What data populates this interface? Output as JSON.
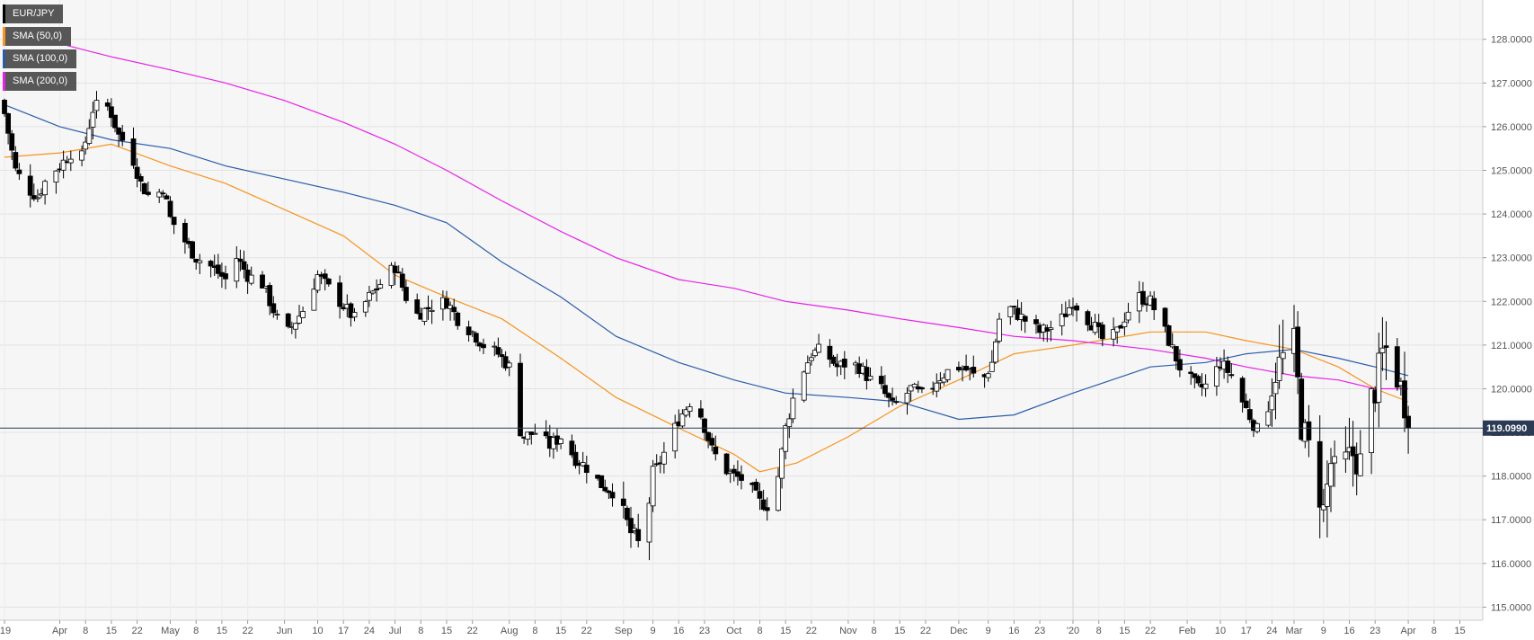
{
  "chart_data": {
    "type": "candlestick",
    "symbol": "EUR/JPY",
    "legend": [
      {
        "label": "EUR/JPY",
        "color": "#000000"
      },
      {
        "label": "SMA (50,0)",
        "color": "#f7931e"
      },
      {
        "label": "SMA (100,0)",
        "color": "#2a5caa"
      },
      {
        "label": "SMA (200,0)",
        "color": "#e620e6"
      }
    ],
    "ylim": [
      114.7,
      128.9
    ],
    "y_ticks": [
      {
        "value": 128.0,
        "label": "128.0000"
      },
      {
        "value": 127.0,
        "label": "127.0000"
      },
      {
        "value": 126.0,
        "label": "126.0000"
      },
      {
        "value": 125.0,
        "label": "125.0000"
      },
      {
        "value": 124.0,
        "label": "124.0000"
      },
      {
        "value": 123.0,
        "label": "123.0000"
      },
      {
        "value": 122.0,
        "label": "122.0000"
      },
      {
        "value": 121.0,
        "label": "121.0000"
      },
      {
        "value": 120.0,
        "label": "120.0000"
      },
      {
        "value": 119.0,
        "label": "119.0000"
      },
      {
        "value": 118.0,
        "label": "118.0000"
      },
      {
        "value": 117.0,
        "label": "117.0000"
      },
      {
        "value": 116.0,
        "label": "116.0000"
      },
      {
        "value": 115.0,
        "label": "115.0000"
      }
    ],
    "x_ticks": [
      {
        "label": "'19",
        "day": 0
      },
      {
        "label": "Apr",
        "day": 15
      },
      {
        "label": "8",
        "day": 22
      },
      {
        "label": "15",
        "day": 29
      },
      {
        "label": "22",
        "day": 36
      },
      {
        "label": "May",
        "day": 45
      },
      {
        "label": "8",
        "day": 52
      },
      {
        "label": "15",
        "day": 59
      },
      {
        "label": "22",
        "day": 66
      },
      {
        "label": "Jun",
        "day": 76
      },
      {
        "label": "10",
        "day": 85
      },
      {
        "label": "17",
        "day": 92
      },
      {
        "label": "24",
        "day": 99
      },
      {
        "label": "Jul",
        "day": 106
      },
      {
        "label": "8",
        "day": 113
      },
      {
        "label": "15",
        "day": 120
      },
      {
        "label": "22",
        "day": 127
      },
      {
        "label": "Aug",
        "day": 137
      },
      {
        "label": "8",
        "day": 144
      },
      {
        "label": "15",
        "day": 151
      },
      {
        "label": "22",
        "day": 158
      },
      {
        "label": "Sep",
        "day": 168
      },
      {
        "label": "9",
        "day": 176
      },
      {
        "label": "16",
        "day": 183
      },
      {
        "label": "23",
        "day": 190
      },
      {
        "label": "Oct",
        "day": 198
      },
      {
        "label": "8",
        "day": 205
      },
      {
        "label": "15",
        "day": 212
      },
      {
        "label": "22",
        "day": 219
      },
      {
        "label": "Nov",
        "day": 229
      },
      {
        "label": "8",
        "day": 236
      },
      {
        "label": "15",
        "day": 243
      },
      {
        "label": "22",
        "day": 250
      },
      {
        "label": "Dec",
        "day": 259
      },
      {
        "label": "9",
        "day": 267
      },
      {
        "label": "16",
        "day": 274
      },
      {
        "label": "23",
        "day": 281
      },
      {
        "label": "'20",
        "day": 290
      },
      {
        "label": "8",
        "day": 297
      },
      {
        "label": "15",
        "day": 304
      },
      {
        "label": "22",
        "day": 311
      },
      {
        "label": "Feb",
        "day": 321
      },
      {
        "label": "10",
        "day": 330
      },
      {
        "label": "17",
        "day": 337
      },
      {
        "label": "24",
        "day": 344
      },
      {
        "label": "Mar",
        "day": 350
      },
      {
        "label": "9",
        "day": 358
      },
      {
        "label": "16",
        "day": 365
      },
      {
        "label": "23",
        "day": 372
      },
      {
        "label": "Apr",
        "day": 381
      },
      {
        "label": "8",
        "day": 388
      },
      {
        "label": "15",
        "day": 395
      }
    ],
    "x_range_days": [
      0,
      400
    ],
    "separator_day": 290,
    "last_price": 119.099,
    "last_price_label": "119.0990",
    "sma50": [
      [
        0,
        125.3
      ],
      [
        15,
        125.4
      ],
      [
        29,
        125.6
      ],
      [
        45,
        125.1
      ],
      [
        60,
        124.7
      ],
      [
        76,
        124.1
      ],
      [
        92,
        123.5
      ],
      [
        106,
        122.6
      ],
      [
        120,
        122.1
      ],
      [
        135,
        121.6
      ],
      [
        151,
        120.7
      ],
      [
        166,
        119.8
      ],
      [
        183,
        119.1
      ],
      [
        198,
        118.5
      ],
      [
        205,
        118.1
      ],
      [
        215,
        118.3
      ],
      [
        229,
        118.9
      ],
      [
        243,
        119.6
      ],
      [
        259,
        120.2
      ],
      [
        274,
        120.8
      ],
      [
        290,
        121.0
      ],
      [
        311,
        121.3
      ],
      [
        326,
        121.3
      ],
      [
        337,
        121.1
      ],
      [
        350,
        120.9
      ],
      [
        362,
        120.5
      ],
      [
        372,
        120.0
      ],
      [
        381,
        119.7
      ]
    ],
    "sma100": [
      [
        0,
        126.5
      ],
      [
        15,
        126.0
      ],
      [
        29,
        125.7
      ],
      [
        45,
        125.5
      ],
      [
        60,
        125.1
      ],
      [
        76,
        124.8
      ],
      [
        92,
        124.5
      ],
      [
        106,
        124.2
      ],
      [
        120,
        123.8
      ],
      [
        135,
        122.9
      ],
      [
        151,
        122.1
      ],
      [
        166,
        121.2
      ],
      [
        183,
        120.6
      ],
      [
        198,
        120.2
      ],
      [
        212,
        119.9
      ],
      [
        229,
        119.8
      ],
      [
        243,
        119.7
      ],
      [
        259,
        119.3
      ],
      [
        274,
        119.4
      ],
      [
        290,
        119.9
      ],
      [
        311,
        120.5
      ],
      [
        326,
        120.6
      ],
      [
        337,
        120.8
      ],
      [
        350,
        120.9
      ],
      [
        362,
        120.7
      ],
      [
        372,
        120.5
      ],
      [
        381,
        120.3
      ]
    ],
    "sma200": [
      [
        0,
        128.0
      ],
      [
        15,
        127.9
      ],
      [
        29,
        127.6
      ],
      [
        45,
        127.3
      ],
      [
        60,
        127.0
      ],
      [
        76,
        126.6
      ],
      [
        92,
        126.1
      ],
      [
        106,
        125.6
      ],
      [
        120,
        125.0
      ],
      [
        135,
        124.3
      ],
      [
        151,
        123.6
      ],
      [
        166,
        123.0
      ],
      [
        183,
        122.5
      ],
      [
        198,
        122.3
      ],
      [
        212,
        122.0
      ],
      [
        229,
        121.8
      ],
      [
        243,
        121.6
      ],
      [
        259,
        121.4
      ],
      [
        274,
        121.2
      ],
      [
        290,
        121.1
      ],
      [
        311,
        120.9
      ],
      [
        326,
        120.7
      ],
      [
        337,
        120.5
      ],
      [
        350,
        120.3
      ],
      [
        362,
        120.2
      ],
      [
        372,
        120.0
      ],
      [
        381,
        120.0
      ]
    ],
    "close_path": [
      [
        0,
        126.3
      ],
      [
        3,
        125.0
      ],
      [
        6,
        124.6
      ],
      [
        9,
        124.4
      ],
      [
        12,
        124.9
      ],
      [
        15,
        125.1
      ],
      [
        18,
        125.4
      ],
      [
        21,
        125.3
      ],
      [
        24,
        126.4
      ],
      [
        27,
        126.6
      ],
      [
        29,
        126.3
      ],
      [
        31,
        125.8
      ],
      [
        34,
        125.5
      ],
      [
        37,
        124.7
      ],
      [
        40,
        124.3
      ],
      [
        43,
        124.6
      ],
      [
        45,
        123.9
      ],
      [
        48,
        123.5
      ],
      [
        52,
        123.0
      ],
      [
        56,
        122.8
      ],
      [
        60,
        122.5
      ],
      [
        63,
        123.0
      ],
      [
        66,
        122.6
      ],
      [
        70,
        122.4
      ],
      [
        74,
        121.6
      ],
      [
        77,
        121.3
      ],
      [
        81,
        121.8
      ],
      [
        85,
        122.6
      ],
      [
        88,
        122.3
      ],
      [
        92,
        121.9
      ],
      [
        95,
        121.6
      ],
      [
        99,
        122.1
      ],
      [
        103,
        122.5
      ],
      [
        106,
        122.8
      ],
      [
        109,
        122.1
      ],
      [
        112,
        121.7
      ],
      [
        116,
        121.9
      ],
      [
        120,
        122.0
      ],
      [
        123,
        121.6
      ],
      [
        127,
        121.3
      ],
      [
        130,
        121.0
      ],
      [
        134,
        120.8
      ],
      [
        137,
        120.5
      ],
      [
        139,
        119.2
      ],
      [
        141,
        118.9
      ],
      [
        144,
        119.0
      ],
      [
        148,
        118.7
      ],
      [
        151,
        118.9
      ],
      [
        155,
        118.4
      ],
      [
        158,
        118.2
      ],
      [
        162,
        117.8
      ],
      [
        166,
        117.6
      ],
      [
        168,
        117.1
      ],
      [
        170,
        116.7
      ],
      [
        173,
        116.3
      ],
      [
        176,
        118.0
      ],
      [
        180,
        118.7
      ],
      [
        183,
        119.3
      ],
      [
        186,
        119.7
      ],
      [
        189,
        119.4
      ],
      [
        192,
        118.6
      ],
      [
        195,
        118.2
      ],
      [
        198,
        118.0
      ],
      [
        201,
        117.9
      ],
      [
        205,
        117.4
      ],
      [
        208,
        117.3
      ],
      [
        210,
        118.0
      ],
      [
        212,
        119.1
      ],
      [
        215,
        120.1
      ],
      [
        219,
        120.8
      ],
      [
        222,
        120.9
      ],
      [
        226,
        120.5
      ],
      [
        229,
        120.6
      ],
      [
        232,
        120.5
      ],
      [
        235,
        120.2
      ],
      [
        238,
        120.0
      ],
      [
        241,
        119.6
      ],
      [
        243,
        119.7
      ],
      [
        246,
        120.0
      ],
      [
        250,
        119.8
      ],
      [
        253,
        120.2
      ],
      [
        256,
        120.4
      ],
      [
        259,
        120.5
      ],
      [
        262,
        120.4
      ],
      [
        265,
        120.1
      ],
      [
        268,
        120.6
      ],
      [
        270,
        121.6
      ],
      [
        272,
        121.9
      ],
      [
        275,
        121.7
      ],
      [
        278,
        121.5
      ],
      [
        281,
        121.3
      ],
      [
        284,
        121.4
      ],
      [
        287,
        121.6
      ],
      [
        290,
        122.0
      ],
      [
        293,
        121.7
      ],
      [
        296,
        121.4
      ],
      [
        299,
        121.0
      ],
      [
        302,
        121.3
      ],
      [
        305,
        121.8
      ],
      [
        308,
        122.1
      ],
      [
        311,
        122.0
      ],
      [
        314,
        121.5
      ],
      [
        317,
        120.9
      ],
      [
        319,
        120.5
      ],
      [
        321,
        120.3
      ],
      [
        324,
        120.0
      ],
      [
        327,
        120.1
      ],
      [
        330,
        120.6
      ],
      [
        333,
        120.3
      ],
      [
        336,
        119.7
      ],
      [
        339,
        119.2
      ],
      [
        341,
        118.9
      ],
      [
        343,
        119.8
      ],
      [
        345,
        120.4
      ],
      [
        347,
        120.7
      ],
      [
        349,
        120.4
      ],
      [
        350,
        121.0
      ],
      [
        352,
        119.2
      ],
      [
        354,
        118.6
      ],
      [
        356,
        118.0
      ],
      [
        358,
        117.2
      ],
      [
        360,
        118.3
      ],
      [
        362,
        117.8
      ],
      [
        364,
        118.3
      ],
      [
        366,
        118.5
      ],
      [
        368,
        118.3
      ],
      [
        370,
        119.5
      ],
      [
        372,
        120.0
      ],
      [
        374,
        120.8
      ],
      [
        376,
        121.0
      ],
      [
        378,
        120.3
      ],
      [
        380,
        119.7
      ],
      [
        381,
        119.1
      ]
    ]
  }
}
